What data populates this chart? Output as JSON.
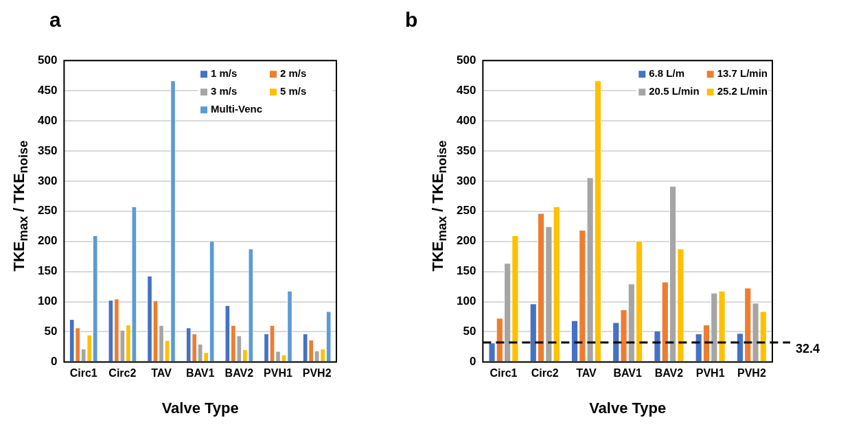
{
  "chart_data": [
    {
      "type": "bar",
      "title": "a",
      "xlabel": "Valve Type",
      "ylabel": "TKE$_{max}$ / TKE$_{noise}$",
      "categories": [
        "Circ1",
        "Circ2",
        "TAV",
        "BAV1",
        "BAV2",
        "PVH1",
        "PVH2"
      ],
      "series": [
        {
          "name": "1 m/s",
          "color": "#4472c4",
          "values": [
            71,
            103,
            143,
            57,
            94,
            47,
            47
          ]
        },
        {
          "name": "2 m/s",
          "color": "#ed7d31",
          "values": [
            57,
            105,
            102,
            47,
            61,
            61,
            37
          ]
        },
        {
          "name": "3 m/s",
          "color": "#a5a5a5",
          "values": [
            22,
            53,
            61,
            30,
            44,
            18,
            19
          ]
        },
        {
          "name": "5 m/s",
          "color": "#ffc000",
          "values": [
            45,
            62,
            36,
            16,
            21,
            12,
            22
          ]
        },
        {
          "name": "Multi-Venc",
          "color": "#5b9bd5",
          "values": [
            210,
            258,
            467,
            201,
            188,
            118,
            84
          ]
        }
      ],
      "ylim": [
        0,
        500
      ],
      "yticks": [
        0,
        50,
        100,
        150,
        200,
        250,
        300,
        350,
        400,
        450,
        500
      ],
      "grid": "y",
      "legend": "top right"
    },
    {
      "type": "bar",
      "title": "b",
      "xlabel": "Valve Type",
      "ylabel": "TKE$_{max}$ / TKE$_{noise}$",
      "categories": [
        "Circ1",
        "Circ2",
        "TAV",
        "BAV1",
        "BAV2",
        "PVH1",
        "PVH2"
      ],
      "series": [
        {
          "name": "6.8 L/m",
          "color": "#4472c4",
          "values": [
            32,
            97,
            69,
            66,
            52,
            47,
            48
          ]
        },
        {
          "name": "13.7 L/min",
          "color": "#ed7d31",
          "values": [
            73,
            247,
            219,
            87,
            133,
            62,
            123
          ]
        },
        {
          "name": "20.5 L/min",
          "color": "#a5a5a5",
          "values": [
            164,
            225,
            306,
            130,
            292,
            115,
            98
          ]
        },
        {
          "name": "25.2 L/min",
          "color": "#ffc000",
          "values": [
            210,
            258,
            467,
            201,
            188,
            118,
            84
          ]
        }
      ],
      "ylim": [
        0,
        500
      ],
      "yticks": [
        0,
        50,
        100,
        150,
        200,
        250,
        300,
        350,
        400,
        450,
        500
      ],
      "grid": "y",
      "legend": "top right",
      "ref_lines": [
        {
          "axis": "y",
          "value": 32.4,
          "label": "32.4",
          "color": "#000000",
          "line_style": "dashed"
        }
      ]
    }
  ]
}
